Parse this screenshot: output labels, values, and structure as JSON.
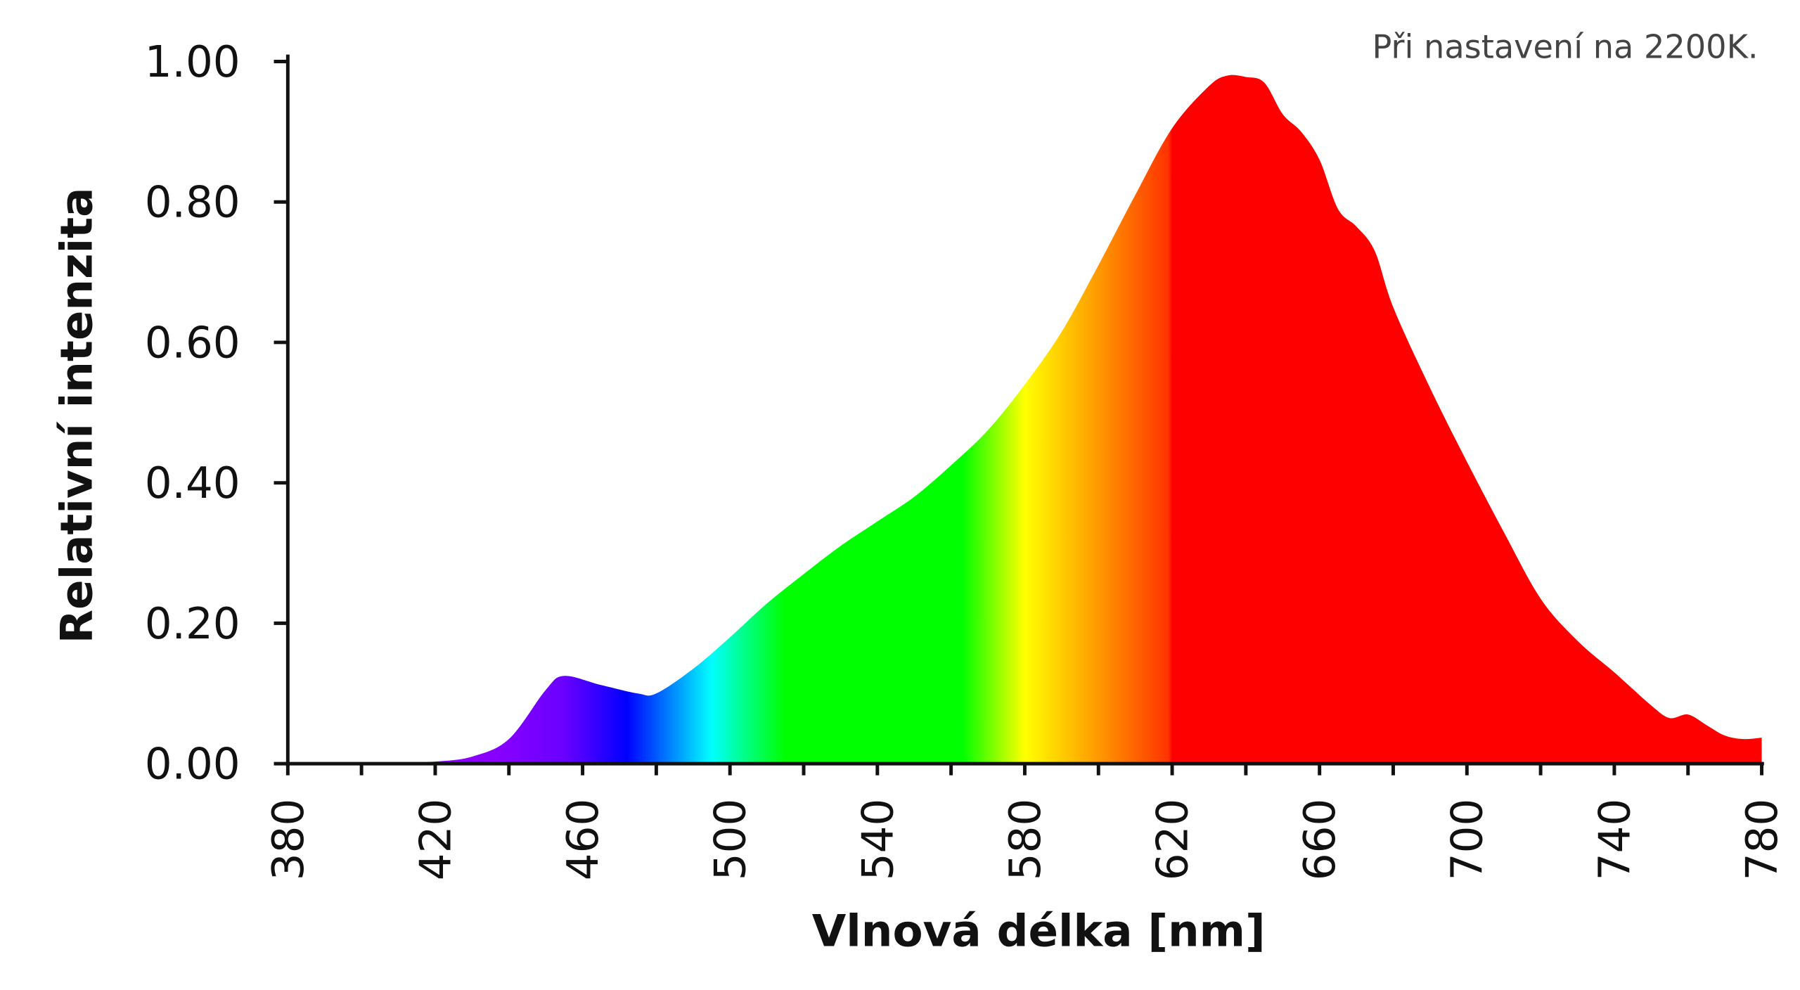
{
  "chart_data": {
    "type": "area",
    "title": "",
    "annotation": "Při nastavení na 2200K.",
    "xlabel": "Vlnová délka [nm]",
    "ylabel": "Relativní intenzita",
    "xlim": [
      380,
      780
    ],
    "ylim": [
      0,
      1
    ],
    "x_ticks": [
      380,
      420,
      460,
      500,
      540,
      580,
      620,
      660,
      700,
      740,
      780
    ],
    "x_tick_labels": [
      "380",
      "420",
      "460",
      "500",
      "540",
      "580",
      "620",
      "660",
      "700",
      "740",
      "780"
    ],
    "x_minor_tick_step": 20,
    "y_ticks": [
      0,
      0.2,
      0.4,
      0.6,
      0.8,
      1.0
    ],
    "y_tick_labels": [
      "0.00",
      "0.20",
      "0.40",
      "0.60",
      "0.80",
      "1.00"
    ],
    "grid": false,
    "fill": "visible-spectrum gradient",
    "x": [
      380,
      400,
      410,
      420,
      430,
      440,
      450,
      455,
      465,
      475,
      480,
      490,
      500,
      510,
      520,
      530,
      540,
      550,
      560,
      570,
      580,
      590,
      600,
      610,
      620,
      630,
      635,
      640,
      645,
      650,
      655,
      660,
      665,
      670,
      675,
      680,
      690,
      700,
      710,
      720,
      730,
      740,
      750,
      755,
      760,
      765,
      770,
      775,
      780
    ],
    "y": [
      0,
      0,
      0.001,
      0.003,
      0.01,
      0.035,
      0.105,
      0.125,
      0.112,
      0.1,
      0.1,
      0.135,
      0.18,
      0.228,
      0.27,
      0.31,
      0.345,
      0.38,
      0.425,
      0.475,
      0.54,
      0.615,
      0.71,
      0.81,
      0.905,
      0.965,
      0.98,
      0.978,
      0.97,
      0.925,
      0.9,
      0.86,
      0.79,
      0.765,
      0.73,
      0.65,
      0.535,
      0.43,
      0.33,
      0.235,
      0.175,
      0.13,
      0.083,
      0.065,
      0.07,
      0.055,
      0.04,
      0.035,
      0.037
    ],
    "colors": {
      "axis": "#111111",
      "spectrum_stops": [
        {
          "nm": 435,
          "color": "#8a00ff"
        },
        {
          "nm": 455,
          "color": "#6a00ff"
        },
        {
          "nm": 472,
          "color": "#0000ff"
        },
        {
          "nm": 495,
          "color": "#00ffff"
        },
        {
          "nm": 502,
          "color": "#00ffa0"
        },
        {
          "nm": 515,
          "color": "#00ff00"
        },
        {
          "nm": 563,
          "color": "#00ff00"
        },
        {
          "nm": 580,
          "color": "#ffff00"
        },
        {
          "nm": 600,
          "color": "#ff9900"
        },
        {
          "nm": 619,
          "color": "#ff3300"
        },
        {
          "nm": 620,
          "color": "#ff0000"
        },
        {
          "nm": 780,
          "color": "#ff0000"
        }
      ]
    }
  }
}
